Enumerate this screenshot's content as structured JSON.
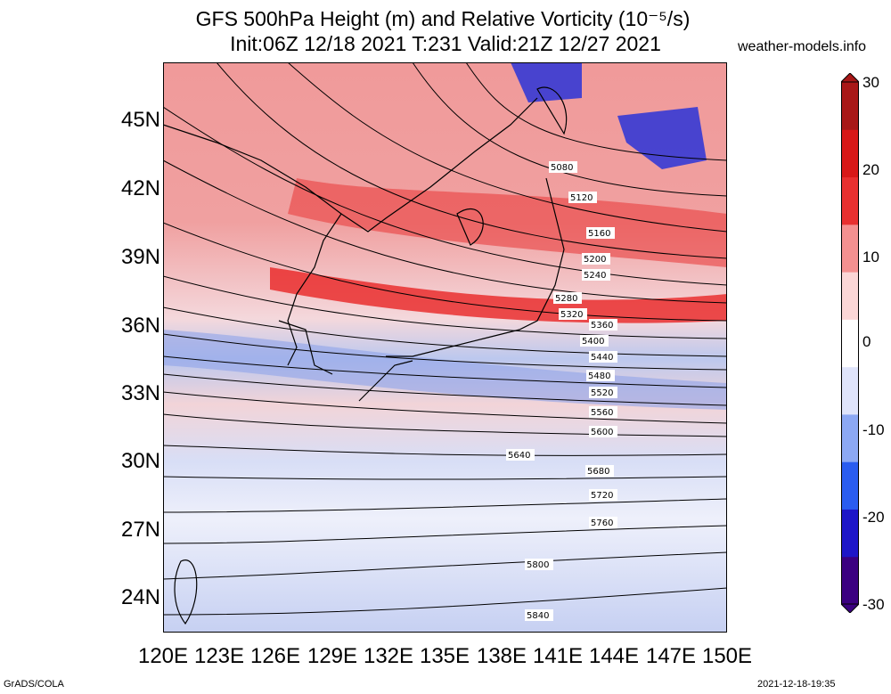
{
  "title_line1": "GFS 500hPa Height (m) and Relative Vorticity (10⁻⁵/s)",
  "title_line2": "Init:06Z 12/18 2021 T:231 Valid:21Z 12/27 2021",
  "website": "weather-models.info",
  "footer_left": "GrADS/COLA",
  "footer_right": "2021-12-18-19:35",
  "lon_labels": [
    "120E",
    "123E",
    "126E",
    "129E",
    "132E",
    "135E",
    "138E",
    "141E",
    "144E",
    "147E",
    "150E"
  ],
  "lat_labels": [
    "45N",
    "42N",
    "39N",
    "36N",
    "33N",
    "30N",
    "27N",
    "24N"
  ],
  "colorbar": {
    "ticks": [
      "30",
      "20",
      "10",
      "0",
      "-10",
      "-20",
      "-30"
    ],
    "colors": [
      "#3b0080",
      "#1e16c8",
      "#2a5cf0",
      "#8ca8f4",
      "#dfe4fb",
      "#ffffff",
      "#fbd6d6",
      "#f49090",
      "#e83030",
      "#d81818",
      "#a81818"
    ]
  },
  "contour_labels": [
    "5080",
    "5120",
    "5160",
    "5200",
    "5240",
    "5280",
    "5320",
    "5360",
    "5400",
    "5440",
    "5480",
    "5520",
    "5560",
    "5600",
    "5640",
    "5680",
    "5720",
    "5760",
    "5800",
    "5840"
  ]
}
